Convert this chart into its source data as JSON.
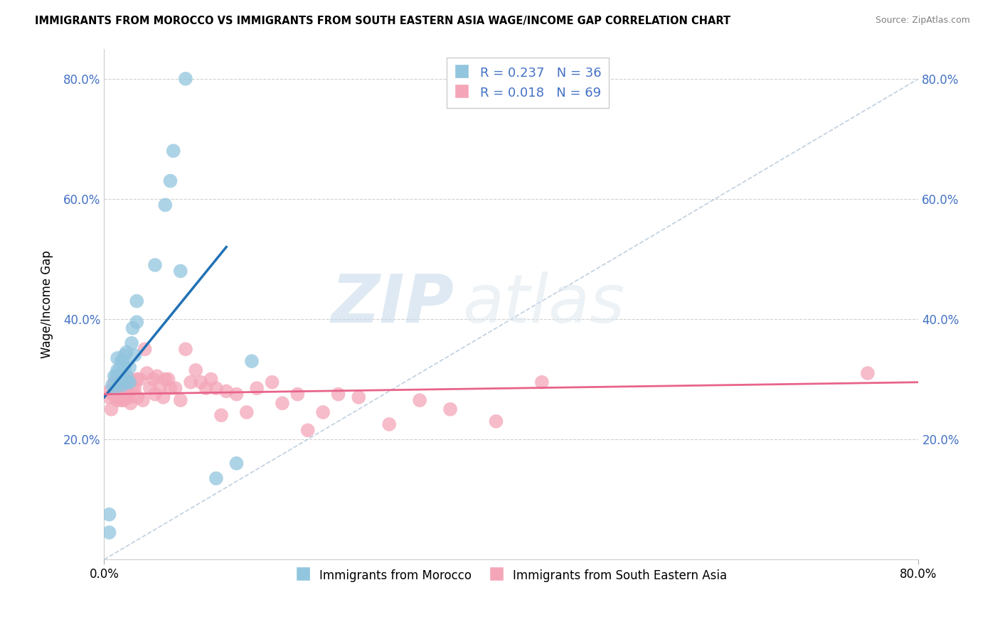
{
  "title": "IMMIGRANTS FROM MOROCCO VS IMMIGRANTS FROM SOUTH EASTERN ASIA WAGE/INCOME GAP CORRELATION CHART",
  "source": "Source: ZipAtlas.com",
  "ylabel": "Wage/Income Gap",
  "xlim": [
    0.0,
    0.8
  ],
  "ylim": [
    0.0,
    0.85
  ],
  "yticks": [
    0.2,
    0.4,
    0.6,
    0.8
  ],
  "ytick_labels": [
    "20.0%",
    "40.0%",
    "60.0%",
    "80.0%"
  ],
  "xticks": [
    0.0,
    0.8
  ],
  "xtick_labels": [
    "0.0%",
    "80.0%"
  ],
  "legend1_label": "R = 0.237   N = 36",
  "legend2_label": "R = 0.018   N = 69",
  "legend_bottom_label1": "Immigrants from Morocco",
  "legend_bottom_label2": "Immigrants from South Eastern Asia",
  "blue_color": "#92c5de",
  "pink_color": "#f4a6b8",
  "blue_line_color": "#2171b5",
  "pink_line_color": "#e8648a",
  "diag_line_color": "#b0c4d8",
  "watermark_zip": "ZIP",
  "watermark_atlas": "atlas",
  "background_color": "#ffffff",
  "grid_color": "#d0d0d0",
  "blue_scatter_x": [
    0.005,
    0.005,
    0.008,
    0.01,
    0.01,
    0.012,
    0.013,
    0.013,
    0.015,
    0.015,
    0.017,
    0.018,
    0.018,
    0.019,
    0.02,
    0.02,
    0.02,
    0.022,
    0.022,
    0.023,
    0.025,
    0.025,
    0.027,
    0.028,
    0.03,
    0.032,
    0.032,
    0.05,
    0.06,
    0.065,
    0.068,
    0.075,
    0.08,
    0.11,
    0.13,
    0.145
  ],
  "blue_scatter_y": [
    0.045,
    0.075,
    0.29,
    0.285,
    0.305,
    0.305,
    0.315,
    0.335,
    0.295,
    0.315,
    0.33,
    0.29,
    0.33,
    0.3,
    0.295,
    0.32,
    0.34,
    0.305,
    0.345,
    0.295,
    0.295,
    0.32,
    0.36,
    0.385,
    0.34,
    0.395,
    0.43,
    0.49,
    0.59,
    0.63,
    0.68,
    0.48,
    0.8,
    0.135,
    0.16,
    0.33
  ],
  "pink_scatter_x": [
    0.005,
    0.005,
    0.007,
    0.008,
    0.01,
    0.01,
    0.012,
    0.013,
    0.014,
    0.015,
    0.015,
    0.016,
    0.017,
    0.018,
    0.018,
    0.019,
    0.02,
    0.02,
    0.021,
    0.022,
    0.022,
    0.023,
    0.025,
    0.025,
    0.026,
    0.028,
    0.03,
    0.032,
    0.033,
    0.035,
    0.038,
    0.04,
    0.042,
    0.045,
    0.048,
    0.05,
    0.052,
    0.055,
    0.058,
    0.06,
    0.063,
    0.065,
    0.07,
    0.075,
    0.08,
    0.085,
    0.09,
    0.095,
    0.1,
    0.105,
    0.11,
    0.115,
    0.12,
    0.13,
    0.14,
    0.15,
    0.165,
    0.175,
    0.19,
    0.2,
    0.215,
    0.23,
    0.25,
    0.28,
    0.31,
    0.34,
    0.385,
    0.43,
    0.75
  ],
  "pink_scatter_y": [
    0.27,
    0.28,
    0.25,
    0.275,
    0.28,
    0.295,
    0.27,
    0.265,
    0.28,
    0.275,
    0.285,
    0.27,
    0.265,
    0.275,
    0.295,
    0.265,
    0.275,
    0.285,
    0.27,
    0.28,
    0.27,
    0.28,
    0.27,
    0.3,
    0.26,
    0.285,
    0.285,
    0.3,
    0.27,
    0.3,
    0.265,
    0.35,
    0.31,
    0.285,
    0.3,
    0.275,
    0.305,
    0.285,
    0.27,
    0.3,
    0.3,
    0.285,
    0.285,
    0.265,
    0.35,
    0.295,
    0.315,
    0.295,
    0.285,
    0.3,
    0.285,
    0.24,
    0.28,
    0.275,
    0.245,
    0.285,
    0.295,
    0.26,
    0.275,
    0.215,
    0.245,
    0.275,
    0.27,
    0.225,
    0.265,
    0.25,
    0.23,
    0.295,
    0.31
  ],
  "blue_line_x0": 0.0,
  "blue_line_x1": 0.12,
  "blue_line_y0": 0.27,
  "blue_line_y1": 0.52,
  "pink_line_x0": 0.0,
  "pink_line_x1": 0.8,
  "pink_line_y0": 0.275,
  "pink_line_y1": 0.295
}
